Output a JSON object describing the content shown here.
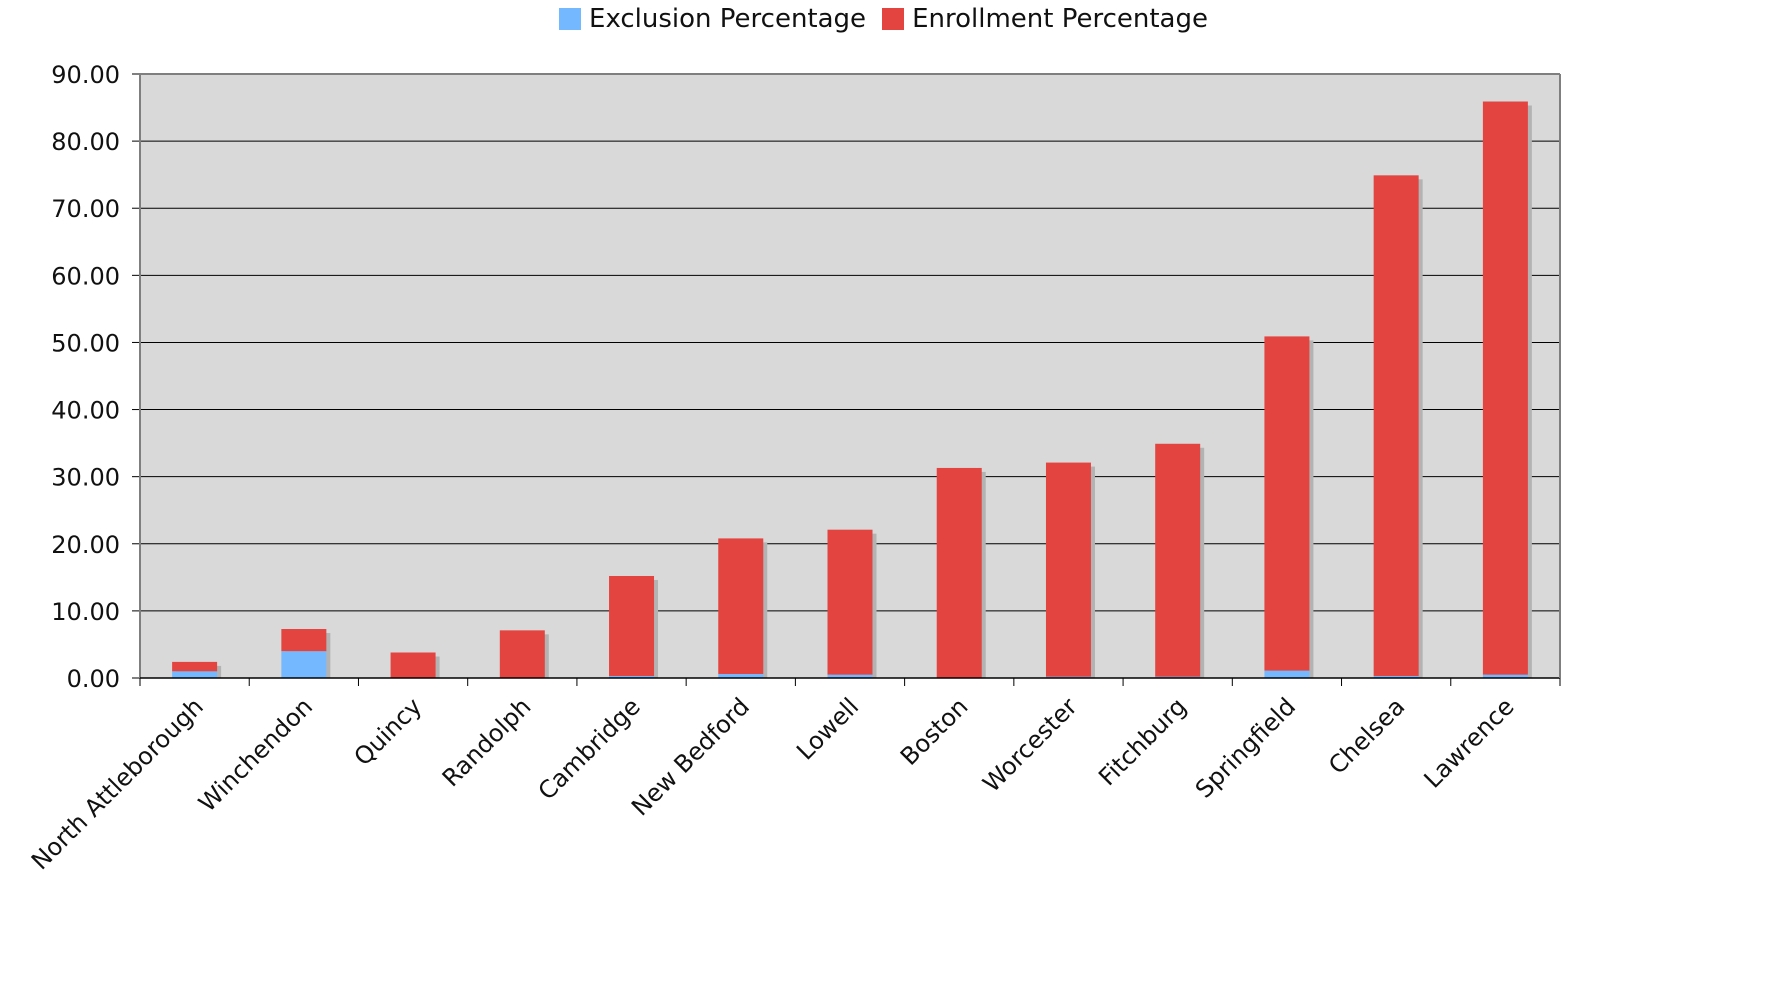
{
  "chart_data": {
    "type": "bar",
    "stacked": true,
    "categories": [
      "North Attleborough",
      "Winchendon",
      "Quincy",
      "Randolph",
      "Cambridge",
      "New Bedford",
      "Lowell",
      "Boston",
      "Worcester",
      "Fitchburg",
      "Springfield",
      "Chelsea",
      "Lawrence"
    ],
    "series": [
      {
        "name": "Exclusion Percentage",
        "color": "#74b9ff",
        "values": [
          1.0,
          4.0,
          0.0,
          0.0,
          0.3,
          0.6,
          0.5,
          0.0,
          0.2,
          0.2,
          1.1,
          0.3,
          0.5
        ]
      },
      {
        "name": "Enrollment Percentage",
        "color": "#e44440",
        "values": [
          1.4,
          3.3,
          3.8,
          7.1,
          14.9,
          20.2,
          21.6,
          31.3,
          31.9,
          34.7,
          49.8,
          74.6,
          85.4
        ]
      }
    ],
    "ylim": [
      0,
      90
    ],
    "yticks": [
      "0.00",
      "10.00",
      "20.00",
      "30.00",
      "40.00",
      "50.00",
      "60.00",
      "70.00",
      "80.00",
      "90.00"
    ],
    "xlabel": "",
    "ylabel": "",
    "title": "",
    "legend_position": "top-center",
    "grid": true,
    "plot_background": "#d9d9d9",
    "shadow_color": "#b3b3b3"
  }
}
